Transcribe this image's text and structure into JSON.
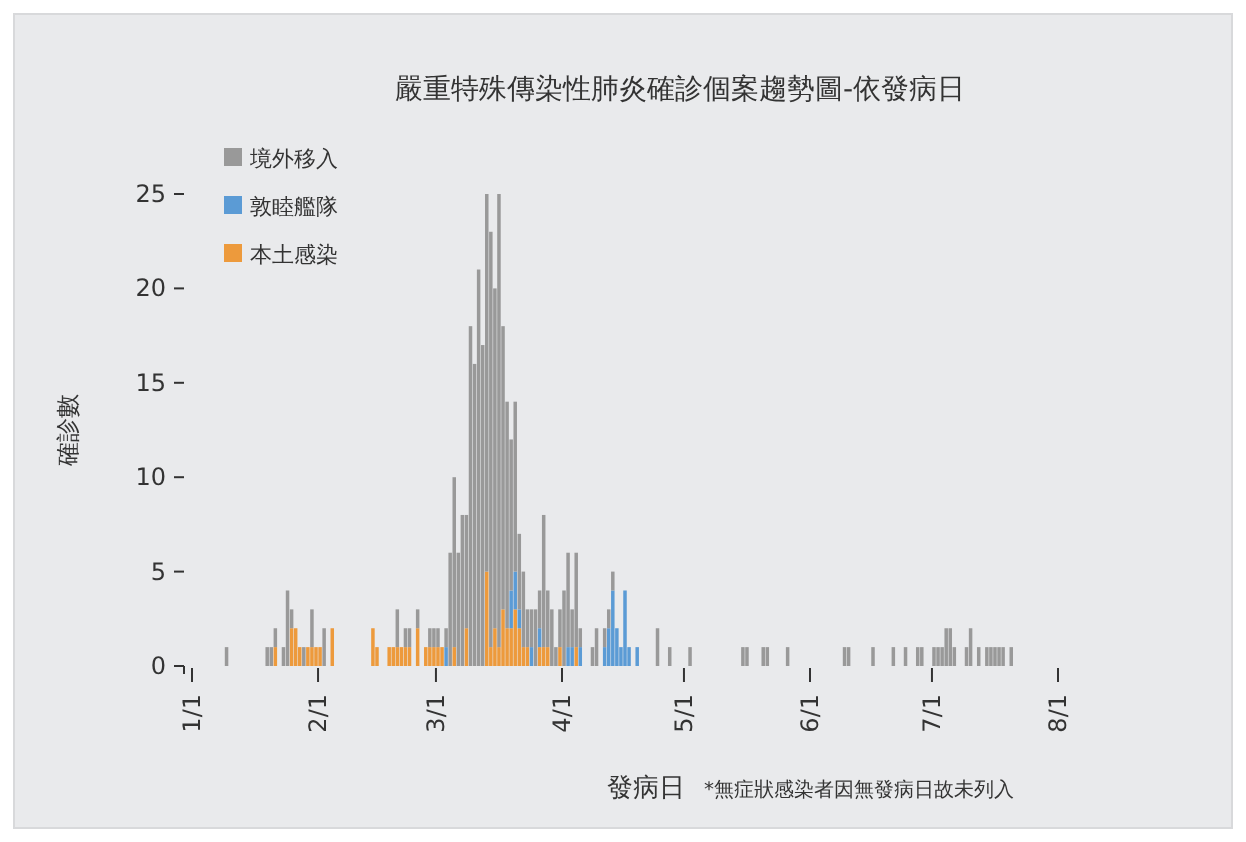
{
  "chart_data": {
    "type": "bar",
    "title": "嚴重特殊傳染性肺炎確診個案趨勢圖-依發病日",
    "xlabel": "發病日",
    "ylabel": "確診數",
    "annotations": [
      "*無症狀感染者因無發病日故未列入"
    ],
    "stacked": true,
    "legend": "top left",
    "xlim": [
      "--01-01",
      "--08-01"
    ],
    "xticks": [
      {
        "value": "--01-01",
        "label": "1/1"
      },
      {
        "value": "--02-01",
        "label": "2/1"
      },
      {
        "value": "--03-01",
        "label": "3/1"
      },
      {
        "value": "--04-01",
        "label": "4/1"
      },
      {
        "value": "--05-01",
        "label": "5/1"
      },
      {
        "value": "--06-01",
        "label": "6/1"
      },
      {
        "value": "--07-01",
        "label": "7/1"
      },
      {
        "value": "--08-01",
        "label": "8/1"
      }
    ],
    "ylim": [
      0,
      25
    ],
    "yticks": [
      0,
      5,
      10,
      15,
      20,
      25
    ],
    "x": [
      "--01-09",
      "--01-19",
      "--01-20",
      "--01-21",
      "--01-23",
      "--01-24",
      "--01-25",
      "--01-26",
      "--01-27",
      "--01-28",
      "--01-29",
      "--01-30",
      "--01-31",
      "--02-01",
      "--02-02",
      "--02-04",
      "--02-14",
      "--02-15",
      "--02-18",
      "--02-19",
      "--02-20",
      "--02-21",
      "--02-22",
      "--02-23",
      "--02-25",
      "--02-27",
      "--02-28",
      "--02-29",
      "--03-01",
      "--03-02",
      "--03-03",
      "--03-04",
      "--03-05",
      "--03-06",
      "--03-07",
      "--03-08",
      "--03-09",
      "--03-10",
      "--03-11",
      "--03-12",
      "--03-13",
      "--03-14",
      "--03-15",
      "--03-16",
      "--03-17",
      "--03-18",
      "--03-19",
      "--03-20",
      "--03-21",
      "--03-22",
      "--03-23",
      "--03-24",
      "--03-25",
      "--03-26",
      "--03-27",
      "--03-28",
      "--03-29",
      "--03-30",
      "--03-31",
      "--04-01",
      "--04-02",
      "--04-03",
      "--04-04",
      "--04-05",
      "--04-08",
      "--04-09",
      "--04-11",
      "--04-12",
      "--04-13",
      "--04-14",
      "--04-15",
      "--04-16",
      "--04-17",
      "--04-19",
      "--04-24",
      "--04-27",
      "--05-02",
      "--05-15",
      "--05-16",
      "--05-20",
      "--05-21",
      "--05-26",
      "--06-09",
      "--06-10",
      "--06-16",
      "--06-21",
      "--06-24",
      "--06-27",
      "--06-28",
      "--07-01",
      "--07-02",
      "--07-03",
      "--07-04",
      "--07-05",
      "--07-06",
      "--07-09",
      "--07-10",
      "--07-12",
      "--07-14",
      "--07-15",
      "--07-16",
      "--07-17",
      "--07-18",
      "--07-20"
    ],
    "series": [
      {
        "name": "本土感染",
        "color": "#ed9a3c",
        "values": [
          0,
          0,
          0,
          1,
          0,
          0,
          2,
          2,
          1,
          0,
          1,
          1,
          1,
          1,
          0,
          2,
          2,
          1,
          1,
          1,
          1,
          1,
          1,
          1,
          2,
          1,
          1,
          1,
          1,
          1,
          0,
          0,
          1,
          0,
          0,
          2,
          0,
          0,
          0,
          0,
          5,
          1,
          2,
          1,
          3,
          2,
          2,
          3,
          2,
          1,
          1,
          0,
          0,
          1,
          1,
          1,
          0,
          0,
          1,
          0,
          0,
          0,
          1,
          0,
          0,
          0,
          0,
          0,
          0,
          0,
          0,
          0,
          0,
          0,
          0,
          0,
          0,
          0,
          0,
          0,
          0,
          0,
          0,
          0,
          0,
          0,
          0,
          0,
          0,
          0,
          0,
          0,
          0,
          0,
          0,
          0,
          0,
          0,
          0,
          0,
          0,
          0,
          0,
          0
        ]
      },
      {
        "name": "敦睦艦隊",
        "color": "#5b9bd5",
        "values": [
          0,
          0,
          0,
          0,
          0,
          0,
          0,
          0,
          0,
          0,
          0,
          0,
          0,
          0,
          0,
          0,
          0,
          0,
          0,
          0,
          0,
          0,
          0,
          0,
          0,
          0,
          0,
          0,
          0,
          0,
          1,
          0,
          0,
          0,
          0,
          0,
          0,
          0,
          0,
          0,
          0,
          0,
          0,
          0,
          0,
          0,
          2,
          2,
          1,
          0,
          0,
          1,
          0,
          1,
          0,
          0,
          0,
          0,
          0,
          0,
          1,
          1,
          0,
          1,
          0,
          0,
          1,
          2,
          4,
          2,
          1,
          4,
          1,
          1,
          0,
          0,
          0,
          0,
          0,
          0,
          0,
          0,
          0,
          0,
          0,
          0,
          0,
          0,
          0,
          0,
          0,
          0,
          0,
          0,
          0,
          0,
          0,
          0,
          0,
          0,
          0,
          0,
          0,
          0
        ]
      },
      {
        "name": "境外移入",
        "color": "#999999",
        "values": [
          1,
          1,
          1,
          1,
          1,
          4,
          1,
          0,
          0,
          1,
          0,
          2,
          0,
          0,
          2,
          0,
          0,
          0,
          0,
          0,
          2,
          0,
          1,
          1,
          1,
          0,
          1,
          1,
          1,
          0,
          1,
          6,
          9,
          6,
          8,
          6,
          18,
          16,
          21,
          17,
          20,
          22,
          18,
          24,
          15,
          12,
          8,
          9,
          4,
          4,
          2,
          2,
          3,
          2,
          7,
          3,
          3,
          1,
          2,
          4,
          5,
          2,
          5,
          1,
          1,
          2,
          1,
          1,
          1,
          0,
          0,
          0,
          0,
          0,
          2,
          1,
          1,
          1,
          1,
          1,
          1,
          1,
          1,
          1,
          1,
          1,
          1,
          1,
          1,
          1,
          1,
          1,
          2,
          2,
          1,
          1,
          2,
          1,
          1,
          1,
          1,
          1,
          1,
          1
        ]
      }
    ]
  }
}
